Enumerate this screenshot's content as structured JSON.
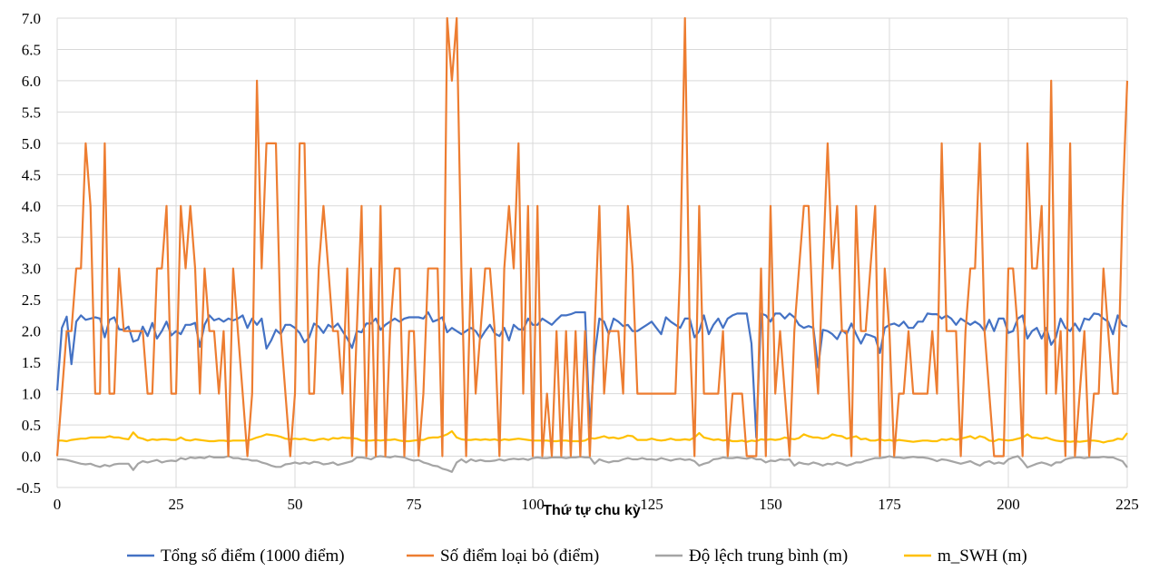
{
  "chart_data": {
    "type": "line",
    "title": "",
    "xlabel": "Thứ tự chu kỳ",
    "ylabel": "",
    "xlim": [
      0,
      225
    ],
    "ylim": [
      -0.5,
      7.0
    ],
    "x_ticks": [
      "0",
      "25",
      "50",
      "75",
      "100",
      "125",
      "150",
      "175",
      "200",
      "225"
    ],
    "y_ticks": [
      "-0.5",
      "0.0",
      "0.5",
      "1.0",
      "1.5",
      "2.0",
      "2.5",
      "3.0",
      "3.5",
      "4.0",
      "4.5",
      "5.0",
      "5.5",
      "6.0",
      "6.5",
      "7.0"
    ],
    "grid": true,
    "legend_position": "bottom",
    "series": [
      {
        "name": "Tổng số điểm (1000 điểm)",
        "color": "#4472C4",
        "values": [
          1.05,
          2.05,
          2.23,
          1.47,
          2.15,
          2.25,
          2.18,
          2.2,
          2.22,
          2.2,
          1.9,
          2.18,
          2.22,
          2.03,
          2.02,
          2.07,
          1.83,
          1.86,
          2.07,
          1.92,
          2.13,
          1.88,
          2.0,
          2.15,
          1.93,
          2.0,
          1.95,
          2.1,
          2.1,
          2.13,
          1.75,
          2.1,
          2.25,
          2.17,
          2.2,
          2.15,
          2.2,
          2.17,
          2.2,
          2.25,
          2.05,
          2.2,
          2.1,
          2.2,
          1.72,
          1.85,
          2.02,
          1.95,
          2.1,
          2.1,
          2.05,
          1.97,
          1.82,
          1.9,
          2.12,
          2.07,
          1.97,
          2.1,
          2.05,
          2.12,
          2.0,
          1.88,
          1.73,
          2.0,
          1.98,
          2.12,
          2.12,
          2.2,
          2.02,
          2.1,
          2.15,
          2.2,
          2.15,
          2.2,
          2.22,
          2.22,
          2.22,
          2.2,
          2.3,
          2.15,
          2.18,
          2.22,
          1.98,
          2.05,
          2.0,
          1.95,
          2.0,
          2.05,
          2.0,
          1.88,
          2.0,
          2.1,
          1.96,
          1.92,
          2.05,
          1.85,
          2.1,
          2.03,
          2.02,
          2.2,
          2.1,
          2.1,
          2.2,
          2.15,
          2.1,
          2.18,
          2.25,
          2.25,
          2.27,
          2.3,
          2.3,
          2.3,
          0.45,
          1.6,
          2.2,
          2.15,
          1.95,
          2.2,
          2.15,
          2.08,
          2.1,
          2.0,
          2.0,
          2.05,
          2.1,
          2.15,
          2.05,
          1.95,
          2.22,
          2.15,
          2.1,
          2.05,
          2.2,
          2.2,
          1.9,
          2.0,
          2.25,
          1.95,
          2.1,
          2.2,
          2.05,
          2.2,
          2.25,
          2.28,
          2.28,
          2.28,
          1.8,
          0.3,
          2.28,
          2.25,
          2.15,
          2.28,
          2.28,
          2.2,
          2.28,
          2.22,
          2.1,
          2.05,
          2.08,
          2.05,
          1.42,
          2.02,
          2.0,
          1.95,
          1.87,
          2.02,
          1.95,
          2.12,
          1.95,
          1.8,
          1.95,
          1.93,
          1.9,
          1.65,
          2.05,
          2.1,
          2.12,
          2.08,
          2.15,
          2.05,
          2.05,
          2.15,
          2.15,
          2.28,
          2.27,
          2.27,
          2.2,
          2.25,
          2.2,
          2.1,
          2.2,
          2.15,
          2.1,
          2.15,
          2.1,
          2.0,
          2.18,
          2.0,
          2.2,
          2.2,
          1.97,
          2.0,
          2.2,
          2.25,
          1.88,
          2.0,
          2.05,
          1.88,
          2.05,
          1.78,
          1.9,
          2.2,
          2.05,
          2.0,
          2.12,
          2.0,
          2.2,
          2.18,
          2.28,
          2.27,
          2.2,
          2.15,
          1.95,
          2.25,
          2.1,
          2.07
        ]
      },
      {
        "name": "Số điểm loại bỏ (điểm)",
        "color": "#ED7D31",
        "values": [
          0,
          1,
          2,
          2,
          3,
          3,
          5,
          4,
          1,
          1,
          5,
          1,
          1,
          3,
          2,
          2,
          2,
          2,
          2,
          1,
          1,
          3,
          3,
          4,
          1,
          1,
          4,
          3,
          4,
          3,
          1,
          3,
          2,
          2,
          1,
          2,
          0,
          3,
          2,
          1,
          0,
          1,
          6,
          3,
          5,
          5,
          5,
          2,
          1,
          0,
          1,
          5,
          5,
          1,
          1,
          3,
          4,
          3,
          2,
          2,
          1,
          3,
          0,
          2,
          4,
          0,
          3,
          0,
          4,
          0,
          2,
          3,
          3,
          0,
          2,
          2,
          0,
          1,
          3,
          3,
          3,
          0,
          7,
          6,
          7,
          3,
          0,
          3,
          1,
          2,
          3,
          3,
          2,
          0,
          3,
          4,
          3,
          5,
          1,
          4,
          0,
          4,
          0,
          1,
          0,
          2,
          0,
          2,
          0,
          2,
          0,
          2,
          0,
          2,
          4,
          1,
          2,
          2,
          2,
          1,
          4,
          3,
          1,
          1,
          1,
          1,
          1,
          1,
          1,
          1,
          1,
          3,
          7,
          2,
          0,
          4,
          1,
          1,
          1,
          1,
          2,
          0,
          1,
          1,
          1,
          0,
          0,
          0,
          3,
          0,
          4,
          1,
          2,
          1,
          0,
          2,
          3,
          4,
          4,
          2,
          1,
          3,
          5,
          3,
          4,
          2,
          2,
          0,
          4,
          2,
          2,
          3,
          4,
          0,
          3,
          2,
          0,
          1,
          1,
          2,
          1,
          1,
          1,
          1,
          2,
          1,
          5,
          2,
          2,
          2,
          0,
          2,
          3,
          3,
          5,
          2,
          1,
          0,
          0,
          0,
          3,
          3,
          2,
          0,
          5,
          3,
          3,
          4,
          1,
          6,
          1,
          2,
          0,
          5,
          0,
          1,
          2,
          0,
          1,
          1,
          3,
          2,
          1,
          1,
          4,
          6
        ]
      },
      {
        "name": "Độ lệch trung bình (m)",
        "color": "#A5A5A5",
        "values": [
          -0.05,
          -0.05,
          -0.06,
          -0.08,
          -0.1,
          -0.12,
          -0.13,
          -0.12,
          -0.15,
          -0.17,
          -0.14,
          -0.16,
          -0.13,
          -0.12,
          -0.12,
          -0.12,
          -0.22,
          -0.12,
          -0.08,
          -0.1,
          -0.08,
          -0.06,
          -0.1,
          -0.08,
          -0.07,
          -0.08,
          -0.03,
          -0.05,
          -0.02,
          -0.03,
          -0.02,
          -0.03,
          0,
          -0.02,
          -0.02,
          -0.02,
          0,
          -0.03,
          -0.03,
          -0.05,
          -0.05,
          -0.07,
          -0.07,
          -0.1,
          -0.12,
          -0.15,
          -0.17,
          -0.17,
          -0.13,
          -0.12,
          -0.1,
          -0.12,
          -0.1,
          -0.12,
          -0.09,
          -0.1,
          -0.13,
          -0.12,
          -0.1,
          -0.14,
          -0.12,
          -0.1,
          -0.08,
          -0.02,
          -0.02,
          -0.03,
          -0.05,
          -0.01,
          0,
          -0.01,
          -0.02,
          0,
          -0.01,
          -0.02,
          -0.05,
          -0.07,
          -0.06,
          -0.1,
          -0.12,
          -0.15,
          -0.16,
          -0.2,
          -0.22,
          -0.25,
          -0.1,
          -0.05,
          -0.1,
          -0.05,
          -0.08,
          -0.06,
          -0.08,
          -0.08,
          -0.07,
          -0.05,
          -0.07,
          -0.05,
          -0.04,
          -0.05,
          -0.04,
          -0.06,
          -0.03,
          -0.02,
          -0.03,
          -0.03,
          -0.02,
          -0.02,
          -0.02,
          -0.03,
          -0.02,
          -0.02,
          -0.01,
          -0.02,
          -0.02,
          -0.12,
          -0.05,
          -0.08,
          -0.1,
          -0.08,
          -0.08,
          -0.05,
          -0.03,
          -0.05,
          -0.05,
          -0.03,
          -0.05,
          -0.05,
          -0.06,
          -0.03,
          -0.05,
          -0.07,
          -0.05,
          -0.04,
          -0.06,
          -0.05,
          -0.08,
          -0.15,
          -0.12,
          -0.1,
          -0.05,
          -0.04,
          -0.02,
          -0.03,
          -0.03,
          -0.02,
          -0.03,
          -0.04,
          -0.02,
          -0.05,
          -0.05,
          -0.1,
          -0.07,
          -0.08,
          -0.05,
          -0.06,
          -0.05,
          -0.15,
          -0.1,
          -0.12,
          -0.13,
          -0.1,
          -0.12,
          -0.15,
          -0.12,
          -0.13,
          -0.1,
          -0.12,
          -0.15,
          -0.13,
          -0.1,
          -0.1,
          -0.07,
          -0.05,
          -0.03,
          -0.03,
          -0.02,
          0,
          -0.02,
          -0.02,
          -0.03,
          -0.02,
          -0.01,
          -0.02,
          -0.02,
          -0.03,
          -0.05,
          -0.08,
          -0.05,
          -0.06,
          -0.08,
          -0.1,
          -0.12,
          -0.1,
          -0.08,
          -0.12,
          -0.15,
          -0.1,
          -0.08,
          -0.12,
          -0.1,
          -0.12,
          -0.05,
          -0.02,
          0,
          -0.08,
          -0.18,
          -0.15,
          -0.12,
          -0.1,
          -0.12,
          -0.15,
          -0.1,
          -0.1,
          -0.05,
          -0.03,
          -0.02,
          -0.02,
          -0.03,
          -0.02,
          -0.02,
          -0.02,
          -0.01,
          -0.02,
          -0.02,
          -0.05,
          -0.08,
          -0.18
        ]
      },
      {
        "name": "m_SWH (m)",
        "color": "#FFC000",
        "values": [
          0.25,
          0.25,
          0.24,
          0.26,
          0.27,
          0.28,
          0.28,
          0.3,
          0.3,
          0.3,
          0.3,
          0.32,
          0.3,
          0.3,
          0.28,
          0.27,
          0.38,
          0.3,
          0.28,
          0.25,
          0.27,
          0.26,
          0.27,
          0.27,
          0.26,
          0.26,
          0.3,
          0.26,
          0.25,
          0.27,
          0.26,
          0.25,
          0.24,
          0.24,
          0.25,
          0.25,
          0.24,
          0.25,
          0.25,
          0.25,
          0.25,
          0.27,
          0.3,
          0.32,
          0.35,
          0.34,
          0.33,
          0.31,
          0.28,
          0.27,
          0.28,
          0.27,
          0.28,
          0.26,
          0.25,
          0.27,
          0.28,
          0.26,
          0.29,
          0.28,
          0.3,
          0.29,
          0.29,
          0.28,
          0.25,
          0.25,
          0.25,
          0.26,
          0.25,
          0.26,
          0.26,
          0.27,
          0.25,
          0.24,
          0.24,
          0.25,
          0.26,
          0.26,
          0.29,
          0.3,
          0.3,
          0.32,
          0.35,
          0.4,
          0.3,
          0.27,
          0.26,
          0.26,
          0.27,
          0.26,
          0.27,
          0.26,
          0.27,
          0.25,
          0.27,
          0.26,
          0.27,
          0.28,
          0.27,
          0.26,
          0.25,
          0.25,
          0.25,
          0.25,
          0.24,
          0.24,
          0.25,
          0.25,
          0.24,
          0.24,
          0.24,
          0.25,
          0.29,
          0.28,
          0.3,
          0.32,
          0.29,
          0.3,
          0.28,
          0.3,
          0.33,
          0.32,
          0.26,
          0.26,
          0.26,
          0.28,
          0.26,
          0.25,
          0.26,
          0.28,
          0.26,
          0.26,
          0.27,
          0.26,
          0.3,
          0.37,
          0.3,
          0.28,
          0.26,
          0.27,
          0.25,
          0.26,
          0.24,
          0.24,
          0.25,
          0.23,
          0.25,
          0.24,
          0.27,
          0.26,
          0.27,
          0.26,
          0.27,
          0.3,
          0.28,
          0.27,
          0.29,
          0.35,
          0.32,
          0.3,
          0.3,
          0.28,
          0.3,
          0.35,
          0.33,
          0.32,
          0.28,
          0.3,
          0.32,
          0.27,
          0.28,
          0.25,
          0.25,
          0.27,
          0.25,
          0.26,
          0.24,
          0.26,
          0.25,
          0.24,
          0.23,
          0.24,
          0.25,
          0.25,
          0.24,
          0.24,
          0.27,
          0.26,
          0.28,
          0.26,
          0.28,
          0.3,
          0.32,
          0.28,
          0.32,
          0.3,
          0.25,
          0.24,
          0.27,
          0.26,
          0.25,
          0.26,
          0.28,
          0.3,
          0.35,
          0.3,
          0.29,
          0.28,
          0.3,
          0.27,
          0.25,
          0.24,
          0.24,
          0.23,
          0.24,
          0.23,
          0.24,
          0.25,
          0.25,
          0.24,
          0.22,
          0.24,
          0.25,
          0.28,
          0.27,
          0.37
        ]
      }
    ]
  }
}
